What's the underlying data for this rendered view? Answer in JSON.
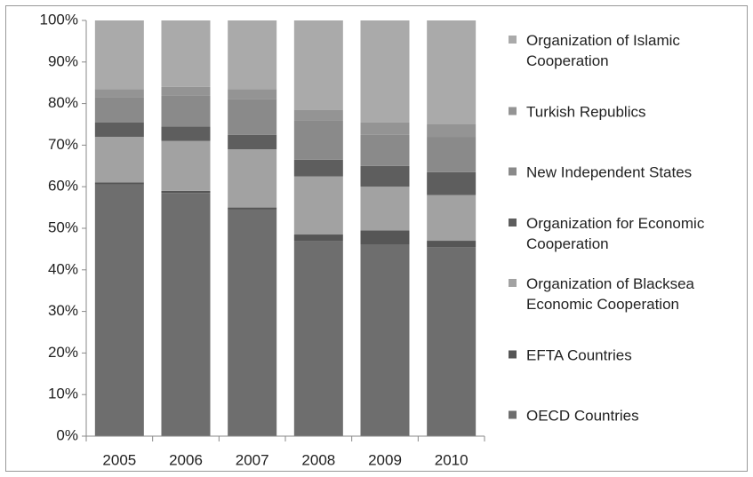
{
  "chart_data": {
    "type": "stacked_bar_100",
    "categories": [
      "2005",
      "2006",
      "2007",
      "2008",
      "2009",
      "2010"
    ],
    "series": [
      {
        "name": "OECD Countries",
        "color": "#6e6e6e",
        "values": [
          60.5,
          58.5,
          54.5,
          47,
          46,
          45.5
        ]
      },
      {
        "name": "EFTA Countries",
        "color": "#565656",
        "values": [
          0.5,
          0.5,
          0.5,
          1.5,
          3.5,
          1.5
        ]
      },
      {
        "name": "Organization of Blacksea Economic Cooperation",
        "color": "#a2a2a2",
        "values": [
          11,
          12,
          14,
          14,
          10.5,
          11
        ]
      },
      {
        "name": "Organization for Economic Cooperation",
        "color": "#5e5e5e",
        "values": [
          3.5,
          3.5,
          3.5,
          4,
          5,
          5.5
        ]
      },
      {
        "name": "New Independent States",
        "color": "#8a8a8a",
        "values": [
          6,
          7.5,
          8.5,
          9.5,
          7.5,
          8.5
        ]
      },
      {
        "name": "Turkish Republics",
        "color": "#949494",
        "values": [
          2,
          2,
          2.5,
          2.5,
          3,
          3
        ]
      },
      {
        "name": "Organization of Islamic Cooperation",
        "color": "#aaaaaa",
        "values": [
          16.5,
          16,
          16.5,
          21.5,
          24.5,
          25
        ]
      }
    ],
    "ylim": [
      0,
      100
    ],
    "yticks": [
      {
        "value": 0,
        "label": "0%"
      },
      {
        "value": 10,
        "label": "10%"
      },
      {
        "value": 20,
        "label": "20%"
      },
      {
        "value": 30,
        "label": "30%"
      },
      {
        "value": 40,
        "label": "40%"
      },
      {
        "value": 50,
        "label": "50%"
      },
      {
        "value": 60,
        "label": "60%"
      },
      {
        "value": 70,
        "label": "70%"
      },
      {
        "value": 80,
        "label": "80%"
      },
      {
        "value": 90,
        "label": "90%"
      },
      {
        "value": 100,
        "label": "100%"
      }
    ],
    "legend": "right",
    "grid": false
  }
}
